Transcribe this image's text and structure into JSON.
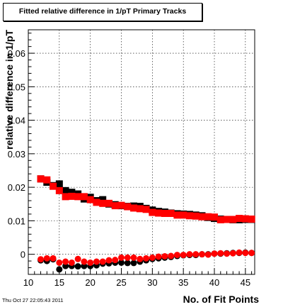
{
  "title": "Fitted relative difference in 1/pT Primary Tracks",
  "footer": "Thu Oct 27 22:05:43 2011",
  "chart_data": {
    "type": "scatter",
    "title": "Fitted relative difference in 1/pT Primary Tracks",
    "xlabel": "No. of Fit Points",
    "ylabel": "relative difference in 1/pT",
    "xlim": [
      10,
      46.5
    ],
    "ylim": [
      -0.006,
      0.067
    ],
    "x_ticks": [
      10,
      15,
      20,
      25,
      30,
      35,
      40,
      45
    ],
    "y_ticks": [
      0,
      0.01,
      0.02,
      0.03,
      0.04,
      0.05,
      0.06
    ],
    "y_tick_labels": [
      "0",
      "0.01",
      "0.02",
      "0.03",
      "0.04",
      "0.05",
      "0.06"
    ],
    "grid": true,
    "series": [
      {
        "color": "#000000",
        "marker": "square",
        "x": [
          12,
          13,
          14,
          15,
          16,
          17,
          18,
          19,
          20,
          21,
          22,
          23,
          24,
          25,
          26,
          27,
          28,
          29,
          30,
          31,
          32,
          33,
          34,
          35,
          36,
          37,
          38,
          39,
          40,
          41,
          42,
          43,
          44,
          45,
          46
        ],
        "y": [
          0.0225,
          0.0215,
          0.0205,
          0.021,
          0.019,
          0.0185,
          0.018,
          0.0165,
          0.017,
          0.016,
          0.0163,
          0.015,
          0.0148,
          0.0145,
          0.0143,
          0.0144,
          0.0143,
          0.0137,
          0.0132,
          0.0128,
          0.0126,
          0.0123,
          0.0121,
          0.012,
          0.0119,
          0.0117,
          0.0115,
          0.011,
          0.0107,
          0.0105,
          0.0104,
          0.0103,
          0.0103,
          0.0104,
          0.0104
        ]
      },
      {
        "color": "#ff0000",
        "marker": "square",
        "x": [
          12,
          13,
          14,
          15,
          16,
          17,
          18,
          19,
          20,
          21,
          22,
          23,
          24,
          25,
          26,
          27,
          28,
          29,
          30,
          31,
          32,
          33,
          34,
          35,
          36,
          37,
          38,
          39,
          40,
          41,
          42,
          43,
          44,
          45,
          46
        ],
        "y": [
          0.0225,
          0.0222,
          0.0203,
          0.019,
          0.0172,
          0.0173,
          0.0172,
          0.0172,
          0.0163,
          0.0155,
          0.0152,
          0.0152,
          0.0145,
          0.0146,
          0.0142,
          0.0138,
          0.0136,
          0.0134,
          0.0125,
          0.0123,
          0.0122,
          0.0122,
          0.0117,
          0.0117,
          0.0115,
          0.0114,
          0.0112,
          0.0112,
          0.0111,
          0.0103,
          0.0104,
          0.0104,
          0.0107,
          0.0106,
          0.0105
        ]
      },
      {
        "color": "#000000",
        "marker": "circle",
        "x": [
          12,
          13,
          14,
          15,
          16,
          17,
          18,
          19,
          20,
          21,
          22,
          23,
          24,
          25,
          26,
          27,
          28,
          29,
          30,
          31,
          32,
          33,
          34,
          35,
          36,
          37,
          38,
          39,
          40,
          41,
          42,
          43,
          44,
          45,
          46
        ],
        "y": [
          -0.0018,
          -0.002,
          -0.0015,
          -0.0045,
          -0.0035,
          -0.0035,
          -0.0036,
          -0.0035,
          -0.0035,
          -0.0033,
          -0.0028,
          -0.0027,
          -0.0025,
          -0.0025,
          -0.0026,
          -0.0026,
          -0.0022,
          -0.0018,
          -0.0014,
          -0.0012,
          -0.001,
          -0.0008,
          -0.0005,
          -0.0003,
          -0.0002,
          -0.0002,
          0.0,
          0.0,
          0.0002,
          0.0002,
          0.0003,
          0.0004,
          0.0004,
          0.0005,
          0.0004
        ]
      },
      {
        "color": "#ff0000",
        "marker": "circle",
        "x": [
          12,
          13,
          14,
          15,
          16,
          17,
          18,
          19,
          20,
          21,
          22,
          23,
          24,
          25,
          26,
          27,
          28,
          29,
          30,
          31,
          32,
          33,
          34,
          35,
          36,
          37,
          38,
          39,
          40,
          41,
          42,
          43,
          44,
          45,
          46
        ],
        "y": [
          -0.0015,
          -0.0012,
          -0.0012,
          -0.0025,
          -0.0022,
          -0.0025,
          -0.0014,
          -0.0022,
          -0.0025,
          -0.0022,
          -0.0022,
          -0.0018,
          -0.0017,
          -0.001,
          -0.001,
          -0.001,
          -0.0014,
          -0.0012,
          -0.001,
          -0.0007,
          -0.0006,
          -0.0005,
          -0.0002,
          -0.0002,
          0.0,
          0.0,
          0.0,
          -0.0001,
          0.0002,
          0.0003,
          0.0002,
          0.0003,
          0.0005,
          0.0004,
          0.0004
        ]
      }
    ]
  }
}
